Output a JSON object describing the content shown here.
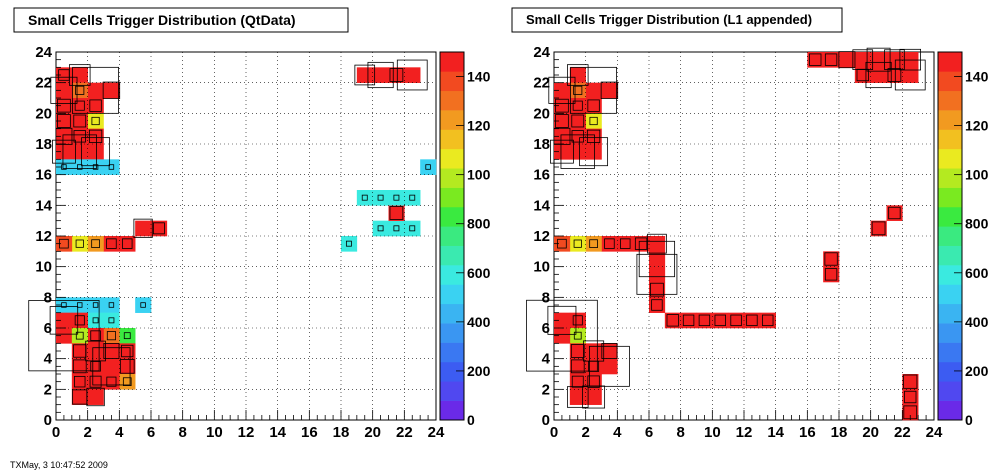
{
  "footer": "TXMay, 3 10:47:52 2009",
  "palette_ticks": [
    "0",
    "200",
    "400",
    "600",
    "800",
    "100",
    "120",
    "140"
  ],
  "chart_data": [
    {
      "type": "heatmap",
      "title": "Small Cells Trigger Distribution (QtData)",
      "xlim": [
        0,
        24
      ],
      "ylim": [
        0,
        24
      ],
      "zlim": [
        0,
        150
      ],
      "x_ticks": [
        "0",
        "2",
        "4",
        "6",
        "8",
        "10",
        "12",
        "14",
        "16",
        "18",
        "20",
        "22",
        "24"
      ],
      "y_ticks": [
        "0",
        "2",
        "4",
        "6",
        "8",
        "10",
        "12",
        "14",
        "16",
        "18",
        "20",
        "22",
        "24"
      ],
      "grid": true,
      "cells": [
        [
          1,
          1,
          260
        ],
        [
          2,
          1,
          330
        ],
        [
          1,
          2,
          180
        ],
        [
          2,
          2,
          190
        ],
        [
          3,
          2,
          150
        ],
        [
          4,
          2,
          120
        ],
        [
          1,
          3,
          230
        ],
        [
          2,
          3,
          160
        ],
        [
          3,
          3,
          760
        ],
        [
          4,
          3,
          250
        ],
        [
          1,
          4,
          220
        ],
        [
          2,
          4,
          380
        ],
        [
          3,
          4,
          280
        ],
        [
          4,
          4,
          200
        ],
        [
          1,
          5,
          100
        ],
        [
          2,
          5,
          160
        ],
        [
          3,
          5,
          130
        ],
        [
          4,
          5,
          80
        ],
        [
          0,
          5,
          1480
        ],
        [
          0,
          6,
          550
        ],
        [
          1,
          6,
          150
        ],
        [
          2,
          6,
          60
        ],
        [
          3,
          6,
          60
        ],
        [
          0,
          7,
          50
        ],
        [
          1,
          7,
          50
        ],
        [
          2,
          7,
          50
        ],
        [
          3,
          7,
          50
        ],
        [
          5,
          7,
          50
        ],
        [
          0,
          11,
          140
        ],
        [
          1,
          11,
          110
        ],
        [
          2,
          11,
          120
        ],
        [
          3,
          11,
          160
        ],
        [
          4,
          11,
          160
        ],
        [
          5,
          12,
          350
        ],
        [
          6,
          12,
          190
        ],
        [
          0,
          16,
          50
        ],
        [
          1,
          16,
          50
        ],
        [
          2,
          16,
          50
        ],
        [
          3,
          16,
          50
        ],
        [
          23,
          16,
          50
        ],
        [
          0,
          17,
          450
        ],
        [
          1,
          17,
          680
        ],
        [
          2,
          17,
          560
        ],
        [
          0,
          18,
          300
        ],
        [
          1,
          18,
          200
        ],
        [
          2,
          18,
          220
        ],
        [
          0,
          19,
          230
        ],
        [
          1,
          19,
          210
        ],
        [
          2,
          19,
          110
        ],
        [
          0,
          20,
          230
        ],
        [
          1,
          20,
          150
        ],
        [
          2,
          20,
          200
        ],
        [
          0,
          21,
          520
        ],
        [
          1,
          21,
          130
        ],
        [
          2,
          21,
          950
        ],
        [
          3,
          21,
          310
        ],
        [
          0,
          22,
          180
        ],
        [
          1,
          22,
          400
        ],
        [
          19,
          22,
          380
        ],
        [
          20,
          22,
          500
        ],
        [
          21,
          22,
          230
        ],
        [
          22,
          22,
          600
        ],
        [
          19,
          14,
          60
        ],
        [
          20,
          14,
          60
        ],
        [
          21,
          14,
          60
        ],
        [
          22,
          14,
          60
        ],
        [
          21,
          13,
          230
        ],
        [
          20,
          12,
          60
        ],
        [
          21,
          12,
          60
        ],
        [
          22,
          12,
          60
        ],
        [
          18,
          11,
          60
        ]
      ]
    },
    {
      "type": "heatmap",
      "title": "Small Cells Trigger Distribution (L1 appended)",
      "xlim": [
        0,
        24
      ],
      "ylim": [
        0,
        24
      ],
      "zlim": [
        0,
        150
      ],
      "x_ticks": [
        "0",
        "2",
        "4",
        "6",
        "8",
        "10",
        "12",
        "14",
        "16",
        "18",
        "20",
        "22",
        "24"
      ],
      "y_ticks": [
        "0",
        "2",
        "4",
        "6",
        "8",
        "10",
        "12",
        "14",
        "16",
        "18",
        "20",
        "22",
        "24"
      ],
      "grid": true,
      "cells": [
        [
          1,
          1,
          400
        ],
        [
          2,
          1,
          430
        ],
        [
          1,
          2,
          190
        ],
        [
          2,
          2,
          200
        ],
        [
          1,
          3,
          230
        ],
        [
          2,
          3,
          170
        ],
        [
          3,
          3,
          820
        ],
        [
          1,
          4,
          230
        ],
        [
          2,
          4,
          390
        ],
        [
          3,
          4,
          280
        ],
        [
          0,
          5,
          1490
        ],
        [
          1,
          5,
          100
        ],
        [
          0,
          6,
          560
        ],
        [
          1,
          6,
          150
        ],
        [
          0,
          11,
          140
        ],
        [
          1,
          11,
          110
        ],
        [
          2,
          11,
          120
        ],
        [
          3,
          11,
          160
        ],
        [
          4,
          11,
          160
        ],
        [
          5,
          11,
          200
        ],
        [
          6,
          11,
          360
        ],
        [
          6,
          10,
          720
        ],
        [
          6,
          9,
          820
        ],
        [
          6,
          8,
          230
        ],
        [
          6,
          7,
          180
        ],
        [
          7,
          6,
          200
        ],
        [
          8,
          6,
          180
        ],
        [
          9,
          6,
          180
        ],
        [
          10,
          6,
          180
        ],
        [
          11,
          6,
          180
        ],
        [
          12,
          6,
          180
        ],
        [
          13,
          6,
          180
        ],
        [
          0,
          17,
          450
        ],
        [
          1,
          17,
          680
        ],
        [
          2,
          17,
          560
        ],
        [
          0,
          18,
          300
        ],
        [
          1,
          18,
          200
        ],
        [
          2,
          18,
          220
        ],
        [
          0,
          19,
          230
        ],
        [
          1,
          19,
          210
        ],
        [
          2,
          19,
          110
        ],
        [
          0,
          20,
          230
        ],
        [
          1,
          20,
          150
        ],
        [
          2,
          20,
          200
        ],
        [
          0,
          21,
          520
        ],
        [
          1,
          21,
          130
        ],
        [
          2,
          21,
          950
        ],
        [
          3,
          21,
          310
        ],
        [
          1,
          22,
          400
        ],
        [
          16,
          23,
          200
        ],
        [
          17,
          23,
          200
        ],
        [
          18,
          23,
          300
        ],
        [
          19,
          23,
          380
        ],
        [
          20,
          23,
          450
        ],
        [
          21,
          23,
          380
        ],
        [
          22,
          23,
          400
        ],
        [
          20,
          22,
          500
        ],
        [
          21,
          22,
          230
        ],
        [
          22,
          22,
          600
        ],
        [
          19,
          22,
          200
        ],
        [
          20,
          12,
          230
        ],
        [
          21,
          13,
          200
        ],
        [
          17,
          10,
          220
        ],
        [
          17,
          9,
          200
        ],
        [
          22,
          2,
          240
        ],
        [
          22,
          1,
          200
        ],
        [
          22,
          0,
          230
        ]
      ]
    }
  ]
}
